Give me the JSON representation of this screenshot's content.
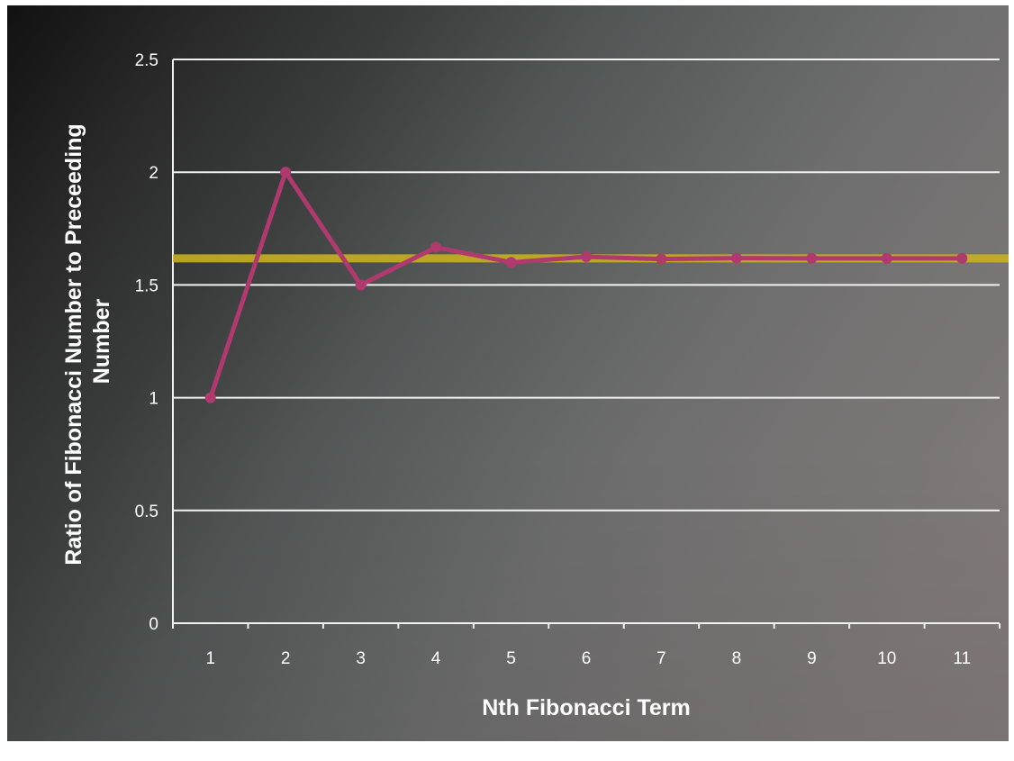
{
  "chart_data": {
    "type": "line",
    "x": [
      1,
      2,
      3,
      4,
      5,
      6,
      7,
      8,
      9,
      10,
      11
    ],
    "categories": [
      "1",
      "2",
      "3",
      "4",
      "5",
      "6",
      "7",
      "8",
      "9",
      "10",
      "11"
    ],
    "series": [
      {
        "values": [
          1,
          2,
          1.5,
          1.667,
          1.6,
          1.625,
          1.615,
          1.619,
          1.618,
          1.618,
          1.618
        ],
        "color": "#b03a6e"
      }
    ],
    "reference_line": {
      "value": 1.618,
      "color": "#c8b020"
    },
    "xlabel": "Nth Fibonacci Term",
    "ylabel": "Ratio of Fibonacci Number to Preceeding Number",
    "ylabel_lines": [
      "Ratio of Fibonacci Number to Preceeding",
      "Number"
    ],
    "y_ticks": [
      "0",
      "0.5",
      "1",
      "1.5",
      "2",
      "2.5"
    ],
    "ylim": [
      0,
      2.5
    ],
    "grid": true,
    "legend": "none"
  }
}
